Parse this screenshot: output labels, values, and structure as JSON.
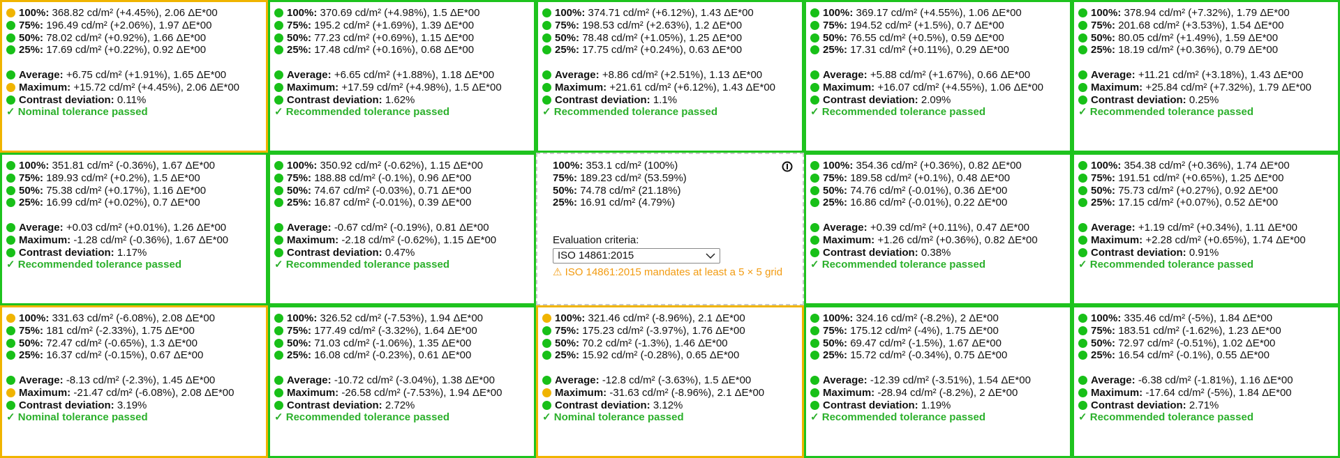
{
  "grid": {
    "rows": [
      [
        {
          "border": "#f0b400",
          "lines": [
            [
              "100%:",
              "368.82 cd/m² (+4.45%), 2.06 ΔE*00",
              "#f0b400"
            ],
            [
              "75%:",
              "196.49 cd/m² (+2.06%), 1.97 ΔE*00",
              "#18c018"
            ],
            [
              "50%:",
              "78.02 cd/m² (+0.92%), 1.66 ΔE*00",
              "#18c018"
            ],
            [
              "25%:",
              "17.69 cd/m² (+0.22%), 0.92 ΔE*00",
              "#18c018"
            ]
          ],
          "average": [
            "Average:",
            "+6.75 cd/m² (+1.91%), 1.65 ΔE*00",
            "#18c018"
          ],
          "maximum": [
            "Maximum:",
            "+15.72 cd/m² (+4.45%), 2.06 ΔE*00",
            "#f0b400"
          ],
          "contrast": [
            "Contrast deviation:",
            "0.11%"
          ],
          "result": "✓ Nominal tolerance passed"
        },
        {
          "border": "#1ec31e",
          "lines": [
            [
              "100%:",
              "370.69 cd/m² (+4.98%), 1.5 ΔE*00",
              "#18c018"
            ],
            [
              "75%:",
              "195.2 cd/m² (+1.69%), 1.39 ΔE*00",
              "#18c018"
            ],
            [
              "50%:",
              "77.23 cd/m² (+0.69%), 1.15 ΔE*00",
              "#18c018"
            ],
            [
              "25%:",
              "17.48 cd/m² (+0.16%), 0.68 ΔE*00",
              "#18c018"
            ]
          ],
          "average": [
            "Average:",
            "+6.65 cd/m² (+1.88%), 1.18 ΔE*00",
            "#18c018"
          ],
          "maximum": [
            "Maximum:",
            "+17.59 cd/m² (+4.98%), 1.5 ΔE*00",
            "#18c018"
          ],
          "contrast": [
            "Contrast deviation:",
            "1.62%"
          ],
          "result": "✓ Recommended tolerance passed"
        },
        {
          "border": "#1ec31e",
          "lines": [
            [
              "100%:",
              "374.71 cd/m² (+6.12%), 1.43 ΔE*00",
              "#18c018"
            ],
            [
              "75%:",
              "198.53 cd/m² (+2.63%), 1.2 ΔE*00",
              "#18c018"
            ],
            [
              "50%:",
              "78.48 cd/m² (+1.05%), 1.25 ΔE*00",
              "#18c018"
            ],
            [
              "25%:",
              "17.75 cd/m² (+0.24%), 0.63 ΔE*00",
              "#18c018"
            ]
          ],
          "average": [
            "Average:",
            "+8.86 cd/m² (+2.51%), 1.13 ΔE*00",
            "#18c018"
          ],
          "maximum": [
            "Maximum:",
            "+21.61 cd/m² (+6.12%), 1.43 ΔE*00",
            "#18c018"
          ],
          "contrast": [
            "Contrast deviation:",
            "1.1%"
          ],
          "result": "✓ Recommended tolerance passed"
        },
        {
          "border": "#1ec31e",
          "lines": [
            [
              "100%:",
              "369.17 cd/m² (+4.55%), 1.06 ΔE*00",
              "#18c018"
            ],
            [
              "75%:",
              "194.52 cd/m² (+1.5%), 0.7 ΔE*00",
              "#18c018"
            ],
            [
              "50%:",
              "76.55 cd/m² (+0.5%), 0.59 ΔE*00",
              "#18c018"
            ],
            [
              "25%:",
              "17.31 cd/m² (+0.11%), 0.29 ΔE*00",
              "#18c018"
            ]
          ],
          "average": [
            "Average:",
            "+5.88 cd/m² (+1.67%), 0.66 ΔE*00",
            "#18c018"
          ],
          "maximum": [
            "Maximum:",
            "+16.07 cd/m² (+4.55%), 1.06 ΔE*00",
            "#18c018"
          ],
          "contrast": [
            "Contrast deviation:",
            "2.09%"
          ],
          "result": "✓ Recommended tolerance passed"
        },
        {
          "border": "#1ec31e",
          "lines": [
            [
              "100%:",
              "378.94 cd/m² (+7.32%), 1.79 ΔE*00",
              "#18c018"
            ],
            [
              "75%:",
              "201.68 cd/m² (+3.53%), 1.54 ΔE*00",
              "#18c018"
            ],
            [
              "50%:",
              "80.05 cd/m² (+1.49%), 1.59 ΔE*00",
              "#18c018"
            ],
            [
              "25%:",
              "18.19 cd/m² (+0.36%), 0.79 ΔE*00",
              "#18c018"
            ]
          ],
          "average": [
            "Average:",
            "+11.21 cd/m² (+3.18%), 1.43 ΔE*00",
            "#18c018"
          ],
          "maximum": [
            "Maximum:",
            "+25.84 cd/m² (+7.32%), 1.79 ΔE*00",
            "#18c018"
          ],
          "contrast": [
            "Contrast deviation:",
            "0.25%"
          ],
          "result": "✓ Recommended tolerance passed"
        }
      ],
      [
        {
          "border": "#1ec31e",
          "lines": [
            [
              "100%:",
              "351.81 cd/m² (-0.36%), 1.67 ΔE*00",
              "#18c018"
            ],
            [
              "75%:",
              "189.93 cd/m² (+0.2%), 1.5 ΔE*00",
              "#18c018"
            ],
            [
              "50%:",
              "75.38 cd/m² (+0.17%), 1.16 ΔE*00",
              "#18c018"
            ],
            [
              "25%:",
              "16.99 cd/m² (+0.02%), 0.7 ΔE*00",
              "#18c018"
            ]
          ],
          "average": [
            "Average:",
            "+0.03 cd/m² (+0.01%), 1.26 ΔE*00",
            "#18c018"
          ],
          "maximum": [
            "Maximum:",
            "-1.28 cd/m² (-0.36%), 1.67 ΔE*00",
            "#18c018"
          ],
          "contrast": [
            "Contrast deviation:",
            "1.17%"
          ],
          "result": "✓ Recommended tolerance passed"
        },
        {
          "border": "#1ec31e",
          "lines": [
            [
              "100%:",
              "350.92 cd/m² (-0.62%), 1.15 ΔE*00",
              "#18c018"
            ],
            [
              "75%:",
              "188.88 cd/m² (-0.1%), 0.96 ΔE*00",
              "#18c018"
            ],
            [
              "50%:",
              "74.67 cd/m² (-0.03%), 0.71 ΔE*00",
              "#18c018"
            ],
            [
              "25%:",
              "16.87 cd/m² (-0.01%), 0.39 ΔE*00",
              "#18c018"
            ]
          ],
          "average": [
            "Average:",
            "-0.67 cd/m² (-0.19%), 0.81 ΔE*00",
            "#18c018"
          ],
          "maximum": [
            "Maximum:",
            "-2.18 cd/m² (-0.62%), 1.15 ΔE*00",
            "#18c018"
          ],
          "contrast": [
            "Contrast deviation:",
            "0.47%"
          ],
          "result": "✓ Recommended tolerance passed"
        },
        {
          "reference": [
            [
              "100%:",
              "353.1 cd/m² (100%)"
            ],
            [
              "75%:",
              "189.23 cd/m² (53.59%)"
            ],
            [
              "50%:",
              "74.78 cd/m² (21.18%)"
            ],
            [
              "25%:",
              "16.91 cd/m² (4.79%)"
            ]
          ],
          "criteria_label": "Evaluation criteria:",
          "criteria_value": "ISO 14861:2015",
          "warning": "⚠ ISO 14861:2015 mandates at least a 5 × 5 grid"
        },
        {
          "border": "#1ec31e",
          "lines": [
            [
              "100%:",
              "354.36 cd/m² (+0.36%), 0.82 ΔE*00",
              "#18c018"
            ],
            [
              "75%:",
              "189.58 cd/m² (+0.1%), 0.48 ΔE*00",
              "#18c018"
            ],
            [
              "50%:",
              "74.76 cd/m² (-0.01%), 0.36 ΔE*00",
              "#18c018"
            ],
            [
              "25%:",
              "16.86 cd/m² (-0.01%), 0.22 ΔE*00",
              "#18c018"
            ]
          ],
          "average": [
            "Average:",
            "+0.39 cd/m² (+0.11%), 0.47 ΔE*00",
            "#18c018"
          ],
          "maximum": [
            "Maximum:",
            "+1.26 cd/m² (+0.36%), 0.82 ΔE*00",
            "#18c018"
          ],
          "contrast": [
            "Contrast deviation:",
            "0.38%"
          ],
          "result": "✓ Recommended tolerance passed"
        },
        {
          "border": "#1ec31e",
          "lines": [
            [
              "100%:",
              "354.38 cd/m² (+0.36%), 1.74 ΔE*00",
              "#18c018"
            ],
            [
              "75%:",
              "191.51 cd/m² (+0.65%), 1.25 ΔE*00",
              "#18c018"
            ],
            [
              "50%:",
              "75.73 cd/m² (+0.27%), 0.92 ΔE*00",
              "#18c018"
            ],
            [
              "25%:",
              "17.15 cd/m² (+0.07%), 0.52 ΔE*00",
              "#18c018"
            ]
          ],
          "average": [
            "Average:",
            "+1.19 cd/m² (+0.34%), 1.11 ΔE*00",
            "#18c018"
          ],
          "maximum": [
            "Maximum:",
            "+2.28 cd/m² (+0.65%), 1.74 ΔE*00",
            "#18c018"
          ],
          "contrast": [
            "Contrast deviation:",
            "0.91%"
          ],
          "result": "✓ Recommended tolerance passed"
        }
      ],
      [
        {
          "border": "#f0b400",
          "lines": [
            [
              "100%:",
              "331.63 cd/m² (-6.08%), 2.08 ΔE*00",
              "#f0b400"
            ],
            [
              "75%:",
              "181 cd/m² (-2.33%), 1.75 ΔE*00",
              "#18c018"
            ],
            [
              "50%:",
              "72.47 cd/m² (-0.65%), 1.3 ΔE*00",
              "#18c018"
            ],
            [
              "25%:",
              "16.37 cd/m² (-0.15%), 0.67 ΔE*00",
              "#18c018"
            ]
          ],
          "average": [
            "Average:",
            "-8.13 cd/m² (-2.3%), 1.45 ΔE*00",
            "#18c018"
          ],
          "maximum": [
            "Maximum:",
            "-21.47 cd/m² (-6.08%), 2.08 ΔE*00",
            "#f0b400"
          ],
          "contrast": [
            "Contrast deviation:",
            "3.19%"
          ],
          "result": "✓ Nominal tolerance passed"
        },
        {
          "border": "#1ec31e",
          "lines": [
            [
              "100%:",
              "326.52 cd/m² (-7.53%), 1.94 ΔE*00",
              "#18c018"
            ],
            [
              "75%:",
              "177.49 cd/m² (-3.32%), 1.64 ΔE*00",
              "#18c018"
            ],
            [
              "50%:",
              "71.03 cd/m² (-1.06%), 1.35 ΔE*00",
              "#18c018"
            ],
            [
              "25%:",
              "16.08 cd/m² (-0.23%), 0.61 ΔE*00",
              "#18c018"
            ]
          ],
          "average": [
            "Average:",
            "-10.72 cd/m² (-3.04%), 1.38 ΔE*00",
            "#18c018"
          ],
          "maximum": [
            "Maximum:",
            "-26.58 cd/m² (-7.53%), 1.94 ΔE*00",
            "#18c018"
          ],
          "contrast": [
            "Contrast deviation:",
            "2.72%"
          ],
          "result": "✓ Recommended tolerance passed"
        },
        {
          "border": "#f0b400",
          "lines": [
            [
              "100%:",
              "321.46 cd/m² (-8.96%), 2.1 ΔE*00",
              "#f0b400"
            ],
            [
              "75%:",
              "175.23 cd/m² (-3.97%), 1.76 ΔE*00",
              "#18c018"
            ],
            [
              "50%:",
              "70.2 cd/m² (-1.3%), 1.46 ΔE*00",
              "#18c018"
            ],
            [
              "25%:",
              "15.92 cd/m² (-0.28%), 0.65 ΔE*00",
              "#18c018"
            ]
          ],
          "average": [
            "Average:",
            "-12.8 cd/m² (-3.63%), 1.5 ΔE*00",
            "#18c018"
          ],
          "maximum": [
            "Maximum:",
            "-31.63 cd/m² (-8.96%), 2.1 ΔE*00",
            "#f0b400"
          ],
          "contrast": [
            "Contrast deviation:",
            "3.12%"
          ],
          "result": "✓ Nominal tolerance passed"
        },
        {
          "border": "#1ec31e",
          "lines": [
            [
              "100%:",
              "324.16 cd/m² (-8.2%), 2 ΔE*00",
              "#18c018"
            ],
            [
              "75%:",
              "175.12 cd/m² (-4%), 1.75 ΔE*00",
              "#18c018"
            ],
            [
              "50%:",
              "69.47 cd/m² (-1.5%), 1.67 ΔE*00",
              "#18c018"
            ],
            [
              "25%:",
              "15.72 cd/m² (-0.34%), 0.75 ΔE*00",
              "#18c018"
            ]
          ],
          "average": [
            "Average:",
            "-12.39 cd/m² (-3.51%), 1.54 ΔE*00",
            "#18c018"
          ],
          "maximum": [
            "Maximum:",
            "-28.94 cd/m² (-8.2%), 2 ΔE*00",
            "#18c018"
          ],
          "contrast": [
            "Contrast deviation:",
            "1.19%"
          ],
          "result": "✓ Recommended tolerance passed"
        },
        {
          "border": "#1ec31e",
          "lines": [
            [
              "100%:",
              "335.46 cd/m² (-5%), 1.84 ΔE*00",
              "#18c018"
            ],
            [
              "75%:",
              "183.51 cd/m² (-1.62%), 1.23 ΔE*00",
              "#18c018"
            ],
            [
              "50%:",
              "72.97 cd/m² (-0.51%), 1.02 ΔE*00",
              "#18c018"
            ],
            [
              "25%:",
              "16.54 cd/m² (-0.1%), 0.55 ΔE*00",
              "#18c018"
            ]
          ],
          "average": [
            "Average:",
            "-6.38 cd/m² (-1.81%), 1.16 ΔE*00",
            "#18c018"
          ],
          "maximum": [
            "Maximum:",
            "-17.64 cd/m² (-5%), 1.84 ΔE*00",
            "#18c018"
          ],
          "contrast": [
            "Contrast deviation:",
            "2.71%"
          ],
          "result": "✓ Recommended tolerance passed"
        }
      ]
    ]
  }
}
